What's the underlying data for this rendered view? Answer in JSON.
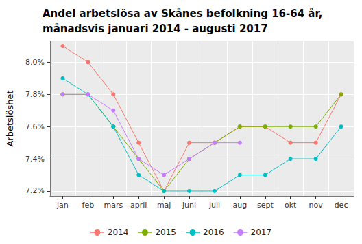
{
  "chart_data": {
    "type": "line",
    "title": "Andel arbetslösa av Skånes befolkning 16-64 år,\nmånadsvis januari 2014 - augusti 2017",
    "y_label": "Arbetslöshet",
    "categories": [
      "jan",
      "feb",
      "mars",
      "april",
      "maj",
      "juni",
      "juli",
      "aug",
      "sept",
      "okt",
      "nov",
      "dec"
    ],
    "series": [
      {
        "name": "2014",
        "color": "#F8766D",
        "values": [
          8.1,
          8.0,
          7.8,
          7.5,
          7.2,
          7.5,
          7.5,
          7.6,
          7.6,
          7.5,
          7.5,
          7.8
        ]
      },
      {
        "name": "2015",
        "color": "#7CAE00",
        "values": [
          7.8,
          7.8,
          7.6,
          7.4,
          7.2,
          7.4,
          7.5,
          7.6,
          7.6,
          7.6,
          7.6,
          7.8
        ]
      },
      {
        "name": "2016",
        "color": "#00BFC4",
        "values": [
          7.9,
          7.8,
          7.6,
          7.3,
          7.2,
          7.2,
          7.2,
          7.3,
          7.3,
          7.4,
          7.4,
          7.6
        ]
      },
      {
        "name": "2017",
        "color": "#C77CFF",
        "values": [
          7.8,
          7.8,
          7.7,
          7.4,
          7.3,
          7.4,
          7.5,
          7.5,
          null,
          null,
          null,
          null
        ]
      }
    ],
    "ylim": [
      7.17,
      8.13
    ],
    "yticks": [
      {
        "value": 7.2,
        "label": "7.2%"
      },
      {
        "value": 7.4,
        "label": "7.4%"
      },
      {
        "value": 7.6,
        "label": "7.6%"
      },
      {
        "value": 7.8,
        "label": "7.8%"
      },
      {
        "value": 8.0,
        "label": "8.0%"
      }
    ],
    "grid": true,
    "legend": "bottom",
    "marker": "circle"
  }
}
